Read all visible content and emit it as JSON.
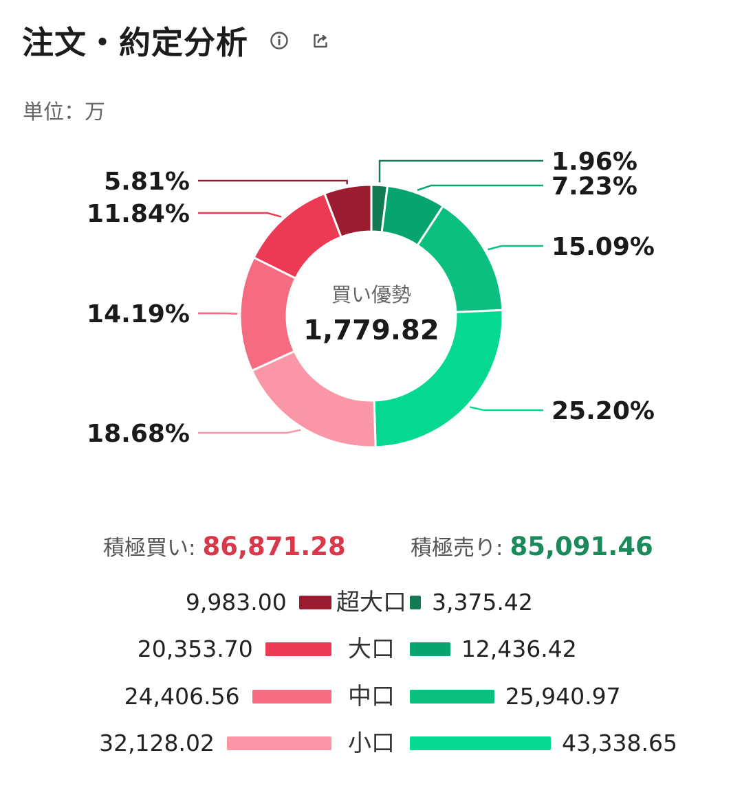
{
  "header": {
    "title": "注文・約定分析",
    "info_icon": "info-icon",
    "share_icon": "share-icon"
  },
  "unit_label": "単位：万",
  "colors": {
    "buy": [
      "#9b1b30",
      "#ec3a55",
      "#f56b80",
      "#fb96a6"
    ],
    "sell": [
      "#137a52",
      "#06a56d",
      "#0bc07f",
      "#05d890"
    ],
    "buy_total": "#d9374a",
    "sell_total": "#1a8a5a"
  },
  "chart_data": {
    "type": "donut",
    "center_label": "買い優勢",
    "center_value": "1,779.82",
    "slices": [
      {
        "group": "sell",
        "category": "超大口",
        "value": 3375.42,
        "percent": "1.96%"
      },
      {
        "group": "sell",
        "category": "大口",
        "value": 12436.42,
        "percent": "7.23%"
      },
      {
        "group": "sell",
        "category": "中口",
        "value": 25940.97,
        "percent": "15.09%"
      },
      {
        "group": "sell",
        "category": "小口",
        "value": 43338.65,
        "percent": "25.20%"
      },
      {
        "group": "buy",
        "category": "小口",
        "value": 32128.02,
        "percent": "18.68%"
      },
      {
        "group": "buy",
        "category": "中口",
        "value": 24406.56,
        "percent": "14.19%"
      },
      {
        "group": "buy",
        "category": "大口",
        "value": 20353.7,
        "percent": "11.84%"
      },
      {
        "group": "buy",
        "category": "超大口",
        "value": 9983.0,
        "percent": "5.81%"
      }
    ]
  },
  "totals": {
    "buy_label": "積極買い:",
    "buy_value": "86,871.28",
    "sell_label": "積極売り:",
    "sell_value": "85,091.46"
  },
  "legend": [
    {
      "category": "超大口",
      "buy_text": "9,983.00",
      "buy_value": 9983.0,
      "sell_text": "3,375.42",
      "sell_value": 3375.42
    },
    {
      "category": "大口",
      "buy_text": "20,353.70",
      "buy_value": 20353.7,
      "sell_text": "12,436.42",
      "sell_value": 12436.42
    },
    {
      "category": "中口",
      "buy_text": "24,406.56",
      "buy_value": 24406.56,
      "sell_text": "25,940.97",
      "sell_value": 25940.97
    },
    {
      "category": "小口",
      "buy_text": "32,128.02",
      "buy_value": 32128.02,
      "sell_text": "43,338.65",
      "sell_value": 43338.65
    }
  ]
}
